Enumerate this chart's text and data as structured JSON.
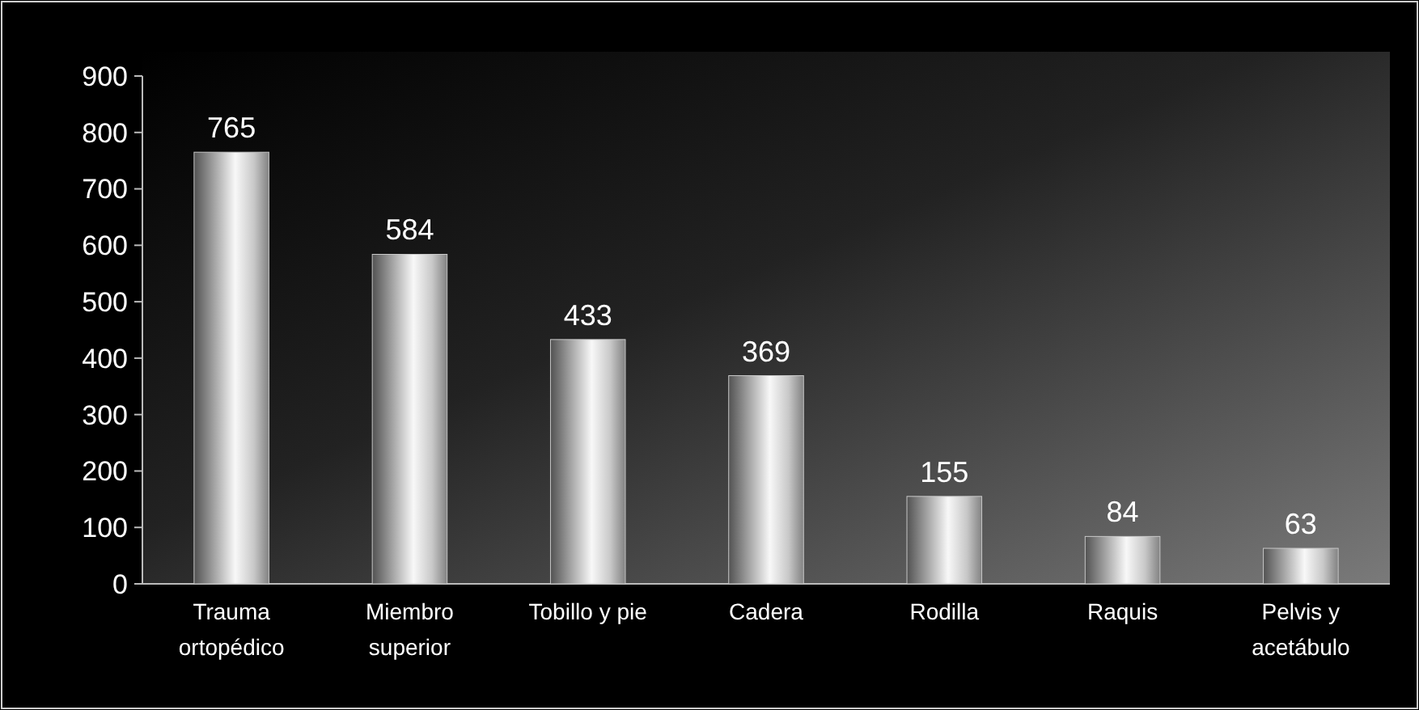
{
  "chart_data": {
    "type": "bar",
    "categories": [
      "Trauma ortopédico",
      "Miembro superior",
      "Tobillo y pie",
      "Cadera",
      "Rodilla",
      "Raquis",
      "Pelvis y acetábulo"
    ],
    "values": [
      765,
      584,
      433,
      369,
      155,
      84,
      63
    ],
    "color": "#c8c8c8",
    "ylim": [
      0,
      900
    ],
    "yticks": [
      0,
      100,
      200,
      300,
      400,
      500,
      600,
      700,
      800,
      900
    ],
    "data_labels": true,
    "grid": false
  }
}
